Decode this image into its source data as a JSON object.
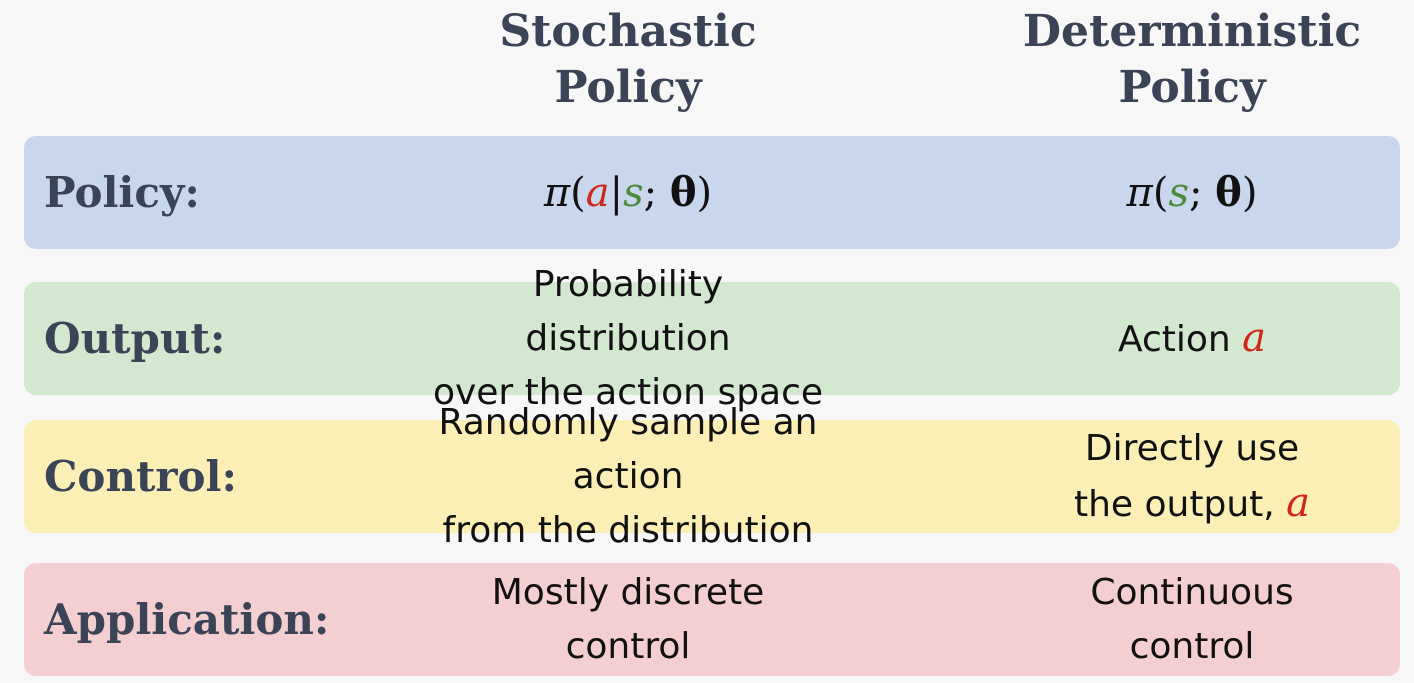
{
  "columns": {
    "stochastic": [
      "Stochastic",
      "Policy"
    ],
    "deterministic": [
      "Deterministic",
      "Policy"
    ]
  },
  "rows": {
    "policy": {
      "label": "Policy:",
      "stochastic": {
        "pi": "π",
        "open": "(",
        "a": "a",
        "bar": "|",
        "s": "s",
        "semi": ";",
        "theta": "θ",
        "close": ")"
      },
      "deterministic": {
        "pi": "π",
        "open": "(",
        "s": "s",
        "semi": ";",
        "theta": "θ",
        "close": ")"
      }
    },
    "output": {
      "label": "Output:",
      "stochastic": [
        "Probability distribution",
        "over the action space"
      ],
      "deterministic": {
        "text": "Action",
        "var": "a"
      }
    },
    "control": {
      "label": "Control:",
      "stochastic": [
        "Randomly sample an action",
        "from the distribution"
      ],
      "deterministic": {
        "line1": "Directly use",
        "line2": "the output,",
        "var": "a"
      }
    },
    "application": {
      "label": "Application:",
      "stochastic": [
        "Mostly discrete",
        "control"
      ],
      "deterministic": [
        "Continuous",
        "control"
      ]
    }
  },
  "colors": {
    "policy_row": "#c9d7ed",
    "output_row": "#d2e8cf",
    "control_row": "#fcefb6",
    "application_row": "#f3cfd1",
    "action_var": "#d0271d",
    "state_var": "#4f8a3e",
    "label_text": "#3b4356"
  }
}
